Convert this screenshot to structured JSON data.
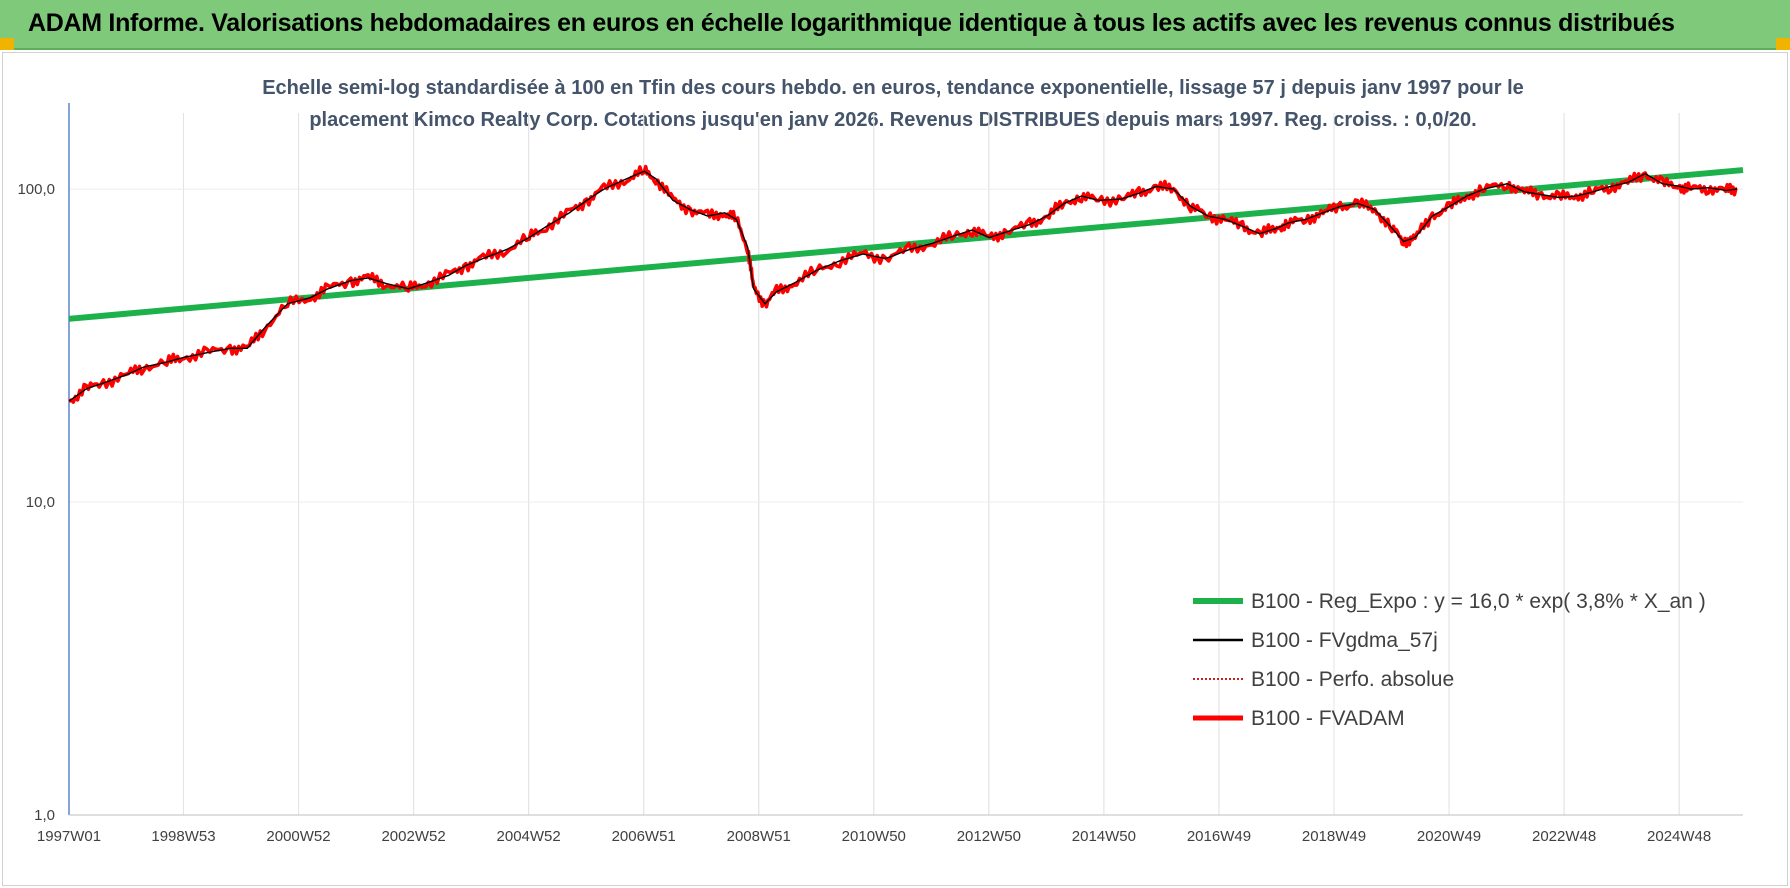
{
  "header": {
    "title": "ADAM Informe. Valorisations hebdomadaires en euros en échelle logarithmique identique à tous les actifs avec les revenus connus distribués"
  },
  "colors": {
    "header_bg": "#7ec97a",
    "regression": "#1db14b",
    "smoothed": "#000000",
    "perf": "#c00000",
    "fvadam": "#ff0000",
    "corner": "#f0b400"
  },
  "chart_data": {
    "type": "line",
    "title_line1": "Echelle semi-log standardisée à 100 en Tfin des cours hebdo. en euros, tendance exponentielle, lissage 57 j depuis janv 1997 pour le",
    "title_line2": "placement Kimco Realty Corp. Cotations jusqu'en janv 2026. Revenus DISTRIBUES depuis mars 1997. Reg. croiss. : 0,0/20.",
    "y_scale": "log",
    "ylim": [
      1,
      175
    ],
    "y_ticks": [
      "1,0",
      "10,0",
      "100,0"
    ],
    "x_range": [
      1997.0,
      2026.1
    ],
    "x_ticks": [
      "1997W01",
      "1998W53",
      "2000W52",
      "2002W52",
      "2004W52",
      "2006W51",
      "2008W51",
      "2010W50",
      "2012W50",
      "2014W50",
      "2016W49",
      "2018W49",
      "2020W49",
      "2022W48",
      "2024W48"
    ],
    "legend_position": "bottom-right",
    "grid": "vertical",
    "series": [
      {
        "name": "B100 - Reg_Expo : y = 16,0 * exp( 3,8% *  X_an )",
        "style": "regression",
        "x": [
          1997.0,
          2026.1
        ],
        "y": [
          38.5,
          115
        ]
      },
      {
        "name": "B100 - FVgdma_57j",
        "style": "smoothed"
      },
      {
        "name": "B100 - Perfo. absolue",
        "style": "perf"
      },
      {
        "name": "B100 - FVADAM",
        "style": "fvadam",
        "x": [
          1997.0,
          1997.3,
          1997.6,
          1998.0,
          1998.3,
          1998.7,
          1999.0,
          1999.4,
          1999.8,
          2000.1,
          2000.4,
          2000.8,
          2001.2,
          2001.5,
          2001.9,
          2002.2,
          2002.5,
          2002.9,
          2003.2,
          2003.6,
          2003.9,
          2004.2,
          2004.6,
          2005.0,
          2005.3,
          2005.7,
          2006.0,
          2006.3,
          2006.7,
          2007.0,
          2007.2,
          2007.5,
          2007.8,
          2008.1,
          2008.4,
          2008.6,
          2008.8,
          2008.9,
          2009.1,
          2009.3,
          2009.6,
          2010.0,
          2010.4,
          2010.8,
          2011.2,
          2011.6,
          2012.0,
          2012.4,
          2012.7,
          2013.0,
          2013.3,
          2013.7,
          2014.0,
          2014.3,
          2014.6,
          2014.9,
          2015.3,
          2015.6,
          2015.9,
          2016.2,
          2016.5,
          2016.8,
          2017.1,
          2017.4,
          2017.7,
          2018.0,
          2018.2,
          2018.5,
          2018.8,
          2019.1,
          2019.4,
          2019.7,
          2020.0,
          2020.2,
          2020.4,
          2020.7,
          2021.0,
          2021.3,
          2021.6,
          2022.0,
          2022.3,
          2022.6,
          2022.9,
          2023.2,
          2023.5,
          2023.8,
          2024.1,
          2024.4,
          2024.7,
          2025.0,
          2025.2,
          2025.5,
          2025.8,
          2026.0
        ],
        "y": [
          21,
          23,
          24,
          25.5,
          27,
          28,
          29,
          30,
          31,
          31,
          36,
          43,
          45,
          48,
          51,
          52,
          50,
          48,
          50,
          53,
          57,
          60,
          64,
          70,
          76,
          84,
          92,
          100,
          108,
          114,
          108,
          92,
          86,
          82,
          84,
          80,
          65,
          48,
          43,
          47,
          50,
          55,
          59,
          62,
          60,
          64,
          67,
          71,
          74,
          70,
          73,
          77,
          82,
          90,
          95,
          92,
          93,
          97,
          102,
          100,
          88,
          82,
          80,
          76,
          72,
          75,
          78,
          80,
          84,
          88,
          90,
          86,
          75,
          68,
          70,
          82,
          88,
          95,
          100,
          104,
          98,
          96,
          94,
          95,
          98,
          102,
          105,
          112,
          104,
          102,
          100,
          101,
          99,
          100
        ]
      }
    ]
  }
}
